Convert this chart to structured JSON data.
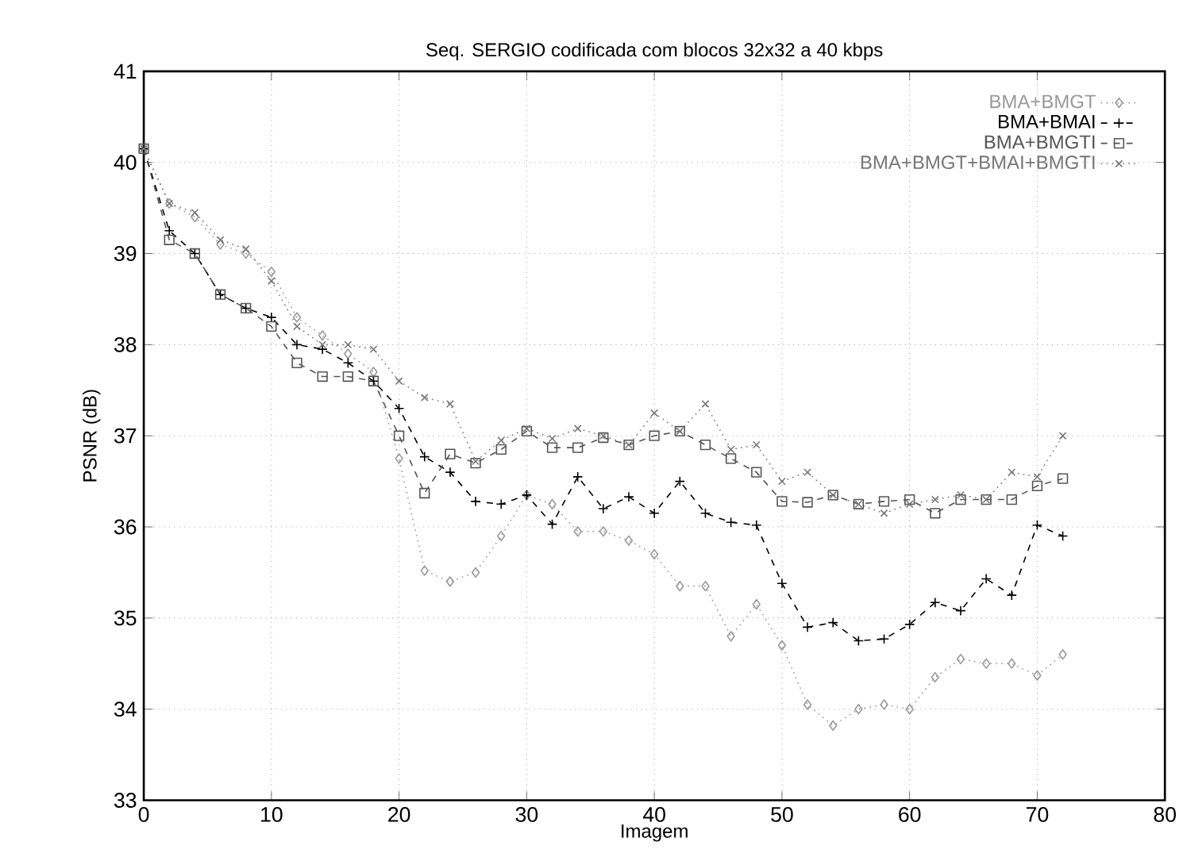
{
  "chart_data": {
    "type": "line",
    "title": "Seq. SERGIO codificada com blocos 32x32 a 40 kbps",
    "xlabel": "Imagem",
    "ylabel": "PSNR (dB)",
    "x": [
      0,
      2,
      4,
      6,
      8,
      10,
      12,
      14,
      16,
      18,
      20,
      22,
      24,
      26,
      28,
      30,
      32,
      34,
      36,
      38,
      40,
      42,
      44,
      46,
      48,
      50,
      52,
      54,
      56,
      58,
      60,
      62,
      64,
      66,
      68,
      70,
      72
    ],
    "series": [
      {
        "name": "BMA+BMGT",
        "color": "#999999",
        "marker": "diamond",
        "line_style": "dotted",
        "values": [
          40.15,
          39.55,
          39.4,
          39.1,
          39.0,
          38.8,
          38.3,
          38.1,
          37.9,
          37.7,
          36.75,
          35.52,
          35.4,
          35.5,
          35.9,
          36.35,
          36.25,
          35.95,
          35.95,
          35.85,
          35.7,
          35.35,
          35.35,
          34.8,
          35.15,
          34.7,
          34.05,
          33.82,
          34.0,
          34.05,
          34.0,
          34.35,
          34.55,
          34.5,
          34.5,
          34.37,
          34.6
        ]
      },
      {
        "name": "BMA+BMAI",
        "color": "#000000",
        "marker": "cross",
        "line_style": "dashed",
        "values": [
          40.15,
          39.25,
          39.0,
          38.55,
          38.4,
          38.3,
          38.0,
          37.95,
          37.8,
          37.6,
          37.3,
          36.77,
          36.6,
          36.28,
          36.25,
          36.35,
          36.03,
          36.55,
          36.2,
          36.33,
          36.15,
          36.5,
          36.15,
          36.05,
          36.02,
          35.38,
          34.9,
          34.95,
          34.75,
          34.77,
          34.93,
          35.17,
          35.08,
          35.43,
          35.25,
          36.02,
          35.9
        ]
      },
      {
        "name": "BMA+BMGTI",
        "color": "#555555",
        "marker": "square",
        "line_style": "dashed",
        "values": [
          40.15,
          39.15,
          39.0,
          38.55,
          38.4,
          38.2,
          37.8,
          37.65,
          37.65,
          37.6,
          37.0,
          36.37,
          36.8,
          36.7,
          36.85,
          37.05,
          36.87,
          36.87,
          36.98,
          36.9,
          37.0,
          37.05,
          36.9,
          36.75,
          36.6,
          36.28,
          36.27,
          36.35,
          36.25,
          36.28,
          36.3,
          36.15,
          36.3,
          36.3,
          36.3,
          36.45,
          36.53
        ]
      },
      {
        "name": "BMA+BMGT+BMAI+BMGTI",
        "color": "#777777",
        "marker": "x",
        "line_style": "dotted",
        "values": [
          40.15,
          39.55,
          39.45,
          39.15,
          39.05,
          38.7,
          38.2,
          38.0,
          38.0,
          37.95,
          37.6,
          37.42,
          37.35,
          36.72,
          36.95,
          37.08,
          36.97,
          37.08,
          37.0,
          36.9,
          37.25,
          37.05,
          37.35,
          36.85,
          36.9,
          36.5,
          36.6,
          36.35,
          36.25,
          36.15,
          36.25,
          36.3,
          36.35,
          36.3,
          36.6,
          36.55,
          37.0
        ]
      }
    ],
    "xlim": [
      0,
      80
    ],
    "ylim": [
      33,
      41
    ],
    "xticks": [
      0,
      10,
      20,
      30,
      40,
      50,
      60,
      70,
      80
    ],
    "yticks": [
      33,
      34,
      35,
      36,
      37,
      38,
      39,
      40,
      41
    ],
    "grid": true,
    "legend": "top right"
  }
}
